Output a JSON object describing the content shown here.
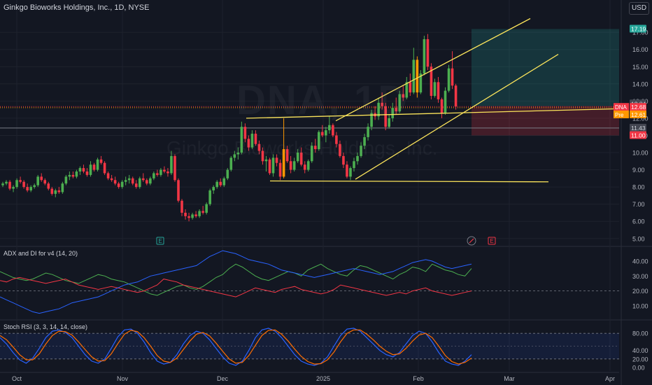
{
  "header": {
    "title": "Ginkgo Bioworks Holdings, Inc., 1D, NYSE",
    "currency": "USD"
  },
  "watermark": {
    "symbol": "DNA, 1D",
    "name": "Ginkgo Bioworks Holdings, Inc."
  },
  "colors": {
    "background": "#131722",
    "up": "#26a69a",
    "up_candle": "#4caf50",
    "down_candle": "#f23645",
    "orange_candle": "#ff9800",
    "trendline": "#fbe45b",
    "adx": "#2962ff",
    "plus_di": "#4caf50",
    "minus_di": "#f23645",
    "stoch_k": "#2962ff",
    "stoch_d": "#ff6d00",
    "grid": "#1e222d",
    "axis_text": "#b2b5be"
  },
  "price_axis": {
    "ticks": [
      "17.00",
      "16.00",
      "15.00",
      "14.00",
      "13.00",
      "12.00",
      "11.00",
      "10.00",
      "9.00",
      "8.00",
      "7.00",
      "6.00",
      "5.00"
    ],
    "labels": [
      {
        "id": "target",
        "text": "17.19",
        "color": "#26a69a"
      },
      {
        "id": "upper",
        "text": "12.84",
        "color": "#434651"
      },
      {
        "id": "dna",
        "text": "12.68",
        "prefix": "DNA",
        "color": "#f23645"
      },
      {
        "id": "pre",
        "text": "12.61",
        "prefix": "Pre",
        "color": "#ff9800"
      },
      {
        "id": "lower",
        "text": "11.43",
        "color": "#434651"
      },
      {
        "id": "stop",
        "text": "11.00",
        "color": "#f23645"
      }
    ]
  },
  "time_axis": [
    "Oct",
    "Nov",
    "Dec",
    "2025",
    "Feb",
    "Mar",
    "Apr"
  ],
  "events": [
    "E",
    "E"
  ],
  "adx_panel": {
    "title": "ADX and DI for v4 (14, 20)",
    "ticks": [
      "40.00",
      "30.00",
      "20.00",
      "10.00"
    ]
  },
  "stoch_panel": {
    "title": "Stoch RSI (3, 3, 14, 14, close)",
    "ticks": [
      "80.00",
      "40.00",
      "20.00",
      "0.00"
    ]
  },
  "chart_data": [
    {
      "type": "candlestick",
      "title": "Ginkgo Bioworks Holdings, Inc., 1D, NYSE",
      "ylim": [
        4.5,
        17.7
      ],
      "x": [
        "Oct",
        "Nov",
        "Dec",
        "2025",
        "Feb",
        "Mar",
        "Apr"
      ],
      "candles": [
        [
          8.1,
          8.3,
          8.0,
          8.2
        ],
        [
          8.2,
          8.4,
          8.1,
          8.3
        ],
        [
          8.3,
          8.4,
          7.8,
          7.9
        ],
        [
          7.9,
          8.1,
          7.7,
          8.0
        ],
        [
          8.0,
          8.5,
          7.9,
          8.4
        ],
        [
          8.4,
          8.6,
          8.2,
          8.3
        ],
        [
          8.3,
          8.4,
          7.9,
          8.0
        ],
        [
          8.0,
          8.2,
          7.7,
          7.8
        ],
        [
          7.8,
          8.1,
          7.7,
          8.0
        ],
        [
          8.0,
          8.2,
          7.9,
          8.1
        ],
        [
          8.1,
          8.7,
          8.0,
          8.6
        ],
        [
          8.6,
          8.8,
          8.3,
          8.4
        ],
        [
          8.4,
          8.5,
          8.1,
          8.2
        ],
        [
          8.2,
          8.3,
          7.8,
          7.9
        ],
        [
          7.9,
          8.0,
          7.5,
          7.6
        ],
        [
          7.6,
          7.9,
          7.4,
          7.8
        ],
        [
          7.8,
          8.0,
          7.6,
          7.7
        ],
        [
          7.7,
          8.3,
          7.6,
          8.2
        ],
        [
          8.2,
          8.7,
          8.1,
          8.6
        ],
        [
          8.6,
          8.9,
          8.4,
          8.7
        ],
        [
          8.7,
          8.9,
          8.5,
          8.6
        ],
        [
          8.6,
          9.0,
          8.5,
          8.9
        ],
        [
          8.9,
          9.2,
          8.7,
          9.1
        ],
        [
          9.1,
          9.3,
          8.8,
          8.9
        ],
        [
          8.9,
          9.1,
          8.6,
          8.7
        ],
        [
          8.7,
          9.5,
          8.6,
          9.3
        ],
        [
          9.3,
          9.4,
          8.9,
          9.0
        ],
        [
          9.0,
          9.7,
          8.9,
          9.6
        ],
        [
          9.6,
          9.8,
          9.3,
          9.4
        ],
        [
          9.4,
          9.5,
          8.7,
          8.8
        ],
        [
          8.8,
          8.9,
          8.4,
          8.5
        ],
        [
          8.5,
          8.7,
          8.3,
          8.4
        ],
        [
          8.4,
          8.6,
          8.1,
          8.2
        ],
        [
          8.2,
          8.3,
          7.9,
          8.0
        ],
        [
          8.0,
          8.4,
          7.9,
          8.3
        ],
        [
          8.3,
          8.6,
          8.1,
          8.4
        ],
        [
          8.4,
          8.7,
          8.2,
          8.5
        ],
        [
          8.5,
          8.6,
          8.1,
          8.2
        ],
        [
          8.2,
          8.4,
          7.9,
          8.0
        ],
        [
          8.0,
          8.6,
          7.9,
          8.5
        ],
        [
          8.5,
          8.8,
          8.3,
          8.4
        ],
        [
          8.4,
          8.5,
          8.1,
          8.2
        ],
        [
          8.2,
          8.6,
          8.1,
          8.5
        ],
        [
          8.5,
          8.9,
          8.4,
          8.8
        ],
        [
          8.8,
          9.0,
          8.6,
          8.7
        ],
        [
          8.7,
          9.1,
          8.6,
          9.0
        ],
        [
          9.0,
          9.2,
          8.8,
          8.9
        ],
        [
          8.9,
          9.1,
          8.6,
          8.8
        ],
        [
          8.8,
          10.1,
          8.7,
          9.8
        ],
        [
          9.8,
          9.9,
          8.3,
          8.4
        ],
        [
          8.4,
          8.5,
          7.1,
          7.2
        ],
        [
          7.2,
          7.3,
          6.3,
          6.5
        ],
        [
          6.5,
          6.7,
          6.1,
          6.3
        ],
        [
          6.3,
          6.5,
          6.0,
          6.2
        ],
        [
          6.2,
          6.5,
          6.1,
          6.4
        ],
        [
          6.4,
          6.6,
          6.2,
          6.3
        ],
        [
          6.3,
          6.7,
          6.2,
          6.6
        ],
        [
          6.6,
          6.9,
          6.4,
          6.5
        ],
        [
          6.5,
          7.1,
          6.4,
          7.0
        ],
        [
          7.0,
          7.9,
          6.9,
          7.8
        ],
        [
          7.8,
          8.1,
          7.6,
          8.0
        ],
        [
          8.0,
          8.4,
          7.9,
          8.3
        ],
        [
          8.3,
          8.5,
          8.0,
          8.1
        ],
        [
          8.1,
          8.6,
          8.0,
          8.5
        ],
        [
          8.5,
          9.1,
          8.4,
          9.0
        ],
        [
          9.0,
          9.8,
          8.9,
          9.7
        ],
        [
          9.7,
          10.1,
          9.5,
          9.9
        ],
        [
          9.9,
          10.3,
          9.6,
          10.0
        ],
        [
          10.0,
          11.8,
          9.9,
          11.5
        ],
        [
          11.5,
          11.7,
          10.6,
          10.8
        ],
        [
          10.8,
          11.0,
          10.1,
          10.3
        ],
        [
          10.3,
          11.3,
          10.2,
          11.1
        ],
        [
          11.1,
          11.3,
          10.4,
          10.5
        ],
        [
          10.5,
          10.7,
          9.9,
          10.1
        ],
        [
          10.1,
          10.3,
          9.3,
          9.5
        ],
        [
          9.5,
          9.8,
          8.9,
          9.6
        ],
        [
          9.6,
          9.7,
          8.7,
          8.8
        ],
        [
          8.8,
          9.9,
          8.6,
          9.7
        ],
        [
          9.7,
          9.9,
          9.2,
          9.4
        ],
        [
          9.4,
          9.6,
          8.4,
          8.6
        ],
        [
          8.6,
          12.0,
          8.5,
          10.2
        ],
        [
          10.2,
          10.4,
          9.4,
          9.5
        ],
        [
          9.5,
          9.8,
          8.8,
          9.0
        ],
        [
          9.0,
          9.7,
          8.9,
          9.5
        ],
        [
          9.5,
          10.2,
          9.4,
          10.0
        ],
        [
          10.0,
          10.3,
          9.2,
          9.3
        ],
        [
          9.3,
          9.5,
          8.8,
          9.0
        ],
        [
          9.0,
          9.6,
          8.9,
          9.5
        ],
        [
          9.5,
          10.6,
          9.4,
          10.4
        ],
        [
          10.4,
          10.8,
          10.0,
          10.2
        ],
        [
          10.2,
          11.3,
          10.1,
          11.2
        ],
        [
          11.2,
          11.6,
          10.9,
          11.0
        ],
        [
          11.0,
          11.5,
          10.6,
          11.3
        ],
        [
          11.3,
          12.1,
          11.1,
          11.6
        ],
        [
          11.6,
          11.7,
          10.9,
          11.0
        ],
        [
          11.0,
          11.2,
          10.3,
          10.5
        ],
        [
          10.5,
          10.7,
          9.7,
          9.8
        ],
        [
          9.8,
          10.0,
          9.1,
          9.3
        ],
        [
          9.3,
          9.5,
          8.5,
          8.6
        ],
        [
          8.6,
          9.2,
          8.4,
          9.1
        ],
        [
          9.1,
          9.7,
          8.9,
          9.5
        ],
        [
          9.5,
          10.0,
          9.3,
          9.8
        ],
        [
          9.8,
          10.6,
          9.7,
          10.4
        ],
        [
          10.4,
          11.1,
          10.2,
          10.9
        ],
        [
          10.9,
          11.7,
          10.7,
          11.5
        ],
        [
          11.5,
          12.5,
          11.3,
          12.3
        ],
        [
          12.3,
          12.7,
          11.9,
          12.1
        ],
        [
          12.1,
          13.2,
          11.9,
          12.9
        ],
        [
          12.9,
          13.5,
          12.5,
          12.7
        ],
        [
          12.7,
          12.9,
          11.3,
          11.5
        ],
        [
          11.5,
          12.2,
          11.4,
          12.0
        ],
        [
          12.0,
          12.9,
          11.8,
          12.6
        ],
        [
          12.6,
          13.2,
          12.2,
          12.4
        ],
        [
          12.4,
          13.6,
          12.3,
          13.4
        ],
        [
          13.4,
          13.9,
          13.0,
          13.2
        ],
        [
          13.2,
          14.4,
          13.1,
          14.1
        ],
        [
          14.1,
          14.6,
          13.3,
          13.5
        ],
        [
          13.5,
          16.1,
          13.4,
          15.4
        ],
        [
          15.4,
          15.6,
          13.2,
          13.5
        ],
        [
          13.5,
          14.8,
          13.4,
          14.6
        ],
        [
          14.6,
          16.8,
          14.5,
          16.6
        ],
        [
          16.6,
          16.9,
          14.8,
          15.0
        ],
        [
          15.0,
          15.2,
          13.1,
          13.3
        ],
        [
          13.3,
          14.3,
          13.2,
          14.1
        ],
        [
          14.1,
          14.4,
          12.9,
          13.1
        ],
        [
          13.1,
          13.2,
          12.0,
          12.3
        ],
        [
          12.3,
          13.8,
          12.2,
          13.6
        ],
        [
          13.6,
          15.1,
          13.5,
          14.9
        ],
        [
          14.9,
          15.9,
          13.7,
          13.9
        ],
        [
          13.9,
          14.0,
          12.5,
          12.68
        ]
      ]
    },
    {
      "type": "line",
      "title": "ADX and DI for v4 (14, 20)",
      "ylim": [
        0,
        50
      ],
      "series": [
        {
          "values": [
            33,
            31,
            29,
            28,
            27,
            28,
            30,
            32,
            31,
            29,
            27,
            26,
            25,
            27,
            29,
            31,
            30,
            28,
            27,
            26,
            24,
            22,
            20,
            18,
            17,
            19,
            21,
            23,
            24,
            22,
            21,
            23,
            26,
            29,
            31,
            35,
            38,
            36,
            33,
            30,
            28,
            27,
            29,
            31,
            33,
            32,
            30,
            34,
            36,
            38,
            35,
            33,
            31,
            30,
            34,
            37,
            36,
            34,
            32,
            30,
            28,
            31,
            33,
            36,
            35,
            33,
            38,
            36,
            34,
            33,
            31,
            30,
            35
          ]
        },
        {
          "values": [
            27,
            26,
            28,
            29,
            28,
            27,
            26,
            25,
            26,
            27,
            28,
            26,
            24,
            23,
            22,
            21,
            22,
            23,
            22,
            21,
            20,
            19,
            20,
            22,
            24,
            28,
            27,
            26,
            24,
            23,
            22,
            21,
            20,
            19,
            18,
            17,
            16,
            18,
            20,
            22,
            21,
            20,
            19,
            21,
            22,
            23,
            21,
            20,
            19,
            18,
            19,
            21,
            24,
            23,
            22,
            21,
            20,
            19,
            18,
            17,
            18,
            19,
            18,
            20,
            21,
            22,
            20,
            19,
            18,
            17,
            18,
            19,
            20
          ]
        },
        {
          "values": [
            16,
            14,
            12,
            10,
            8,
            6,
            5,
            6,
            7,
            8,
            10,
            12,
            13,
            14,
            15,
            16,
            18,
            20,
            22,
            24,
            25,
            26,
            28,
            30,
            31,
            32,
            33,
            34,
            35,
            36,
            37,
            40,
            43,
            45,
            47,
            46,
            45,
            43,
            41,
            40,
            39,
            38,
            36,
            34,
            33,
            32,
            31,
            30,
            29,
            30,
            31,
            32,
            33,
            34,
            35,
            34,
            33,
            32,
            31,
            32,
            33,
            35,
            37,
            39,
            40,
            41,
            40,
            38,
            36,
            35,
            36,
            37,
            38
          ]
        }
      ]
    },
    {
      "type": "line",
      "title": "Stoch RSI (3, 3, 14, 14, close)",
      "ylim": [
        0,
        100
      ],
      "series": [
        {
          "values": [
            70,
            55,
            35,
            18,
            10,
            22,
            45,
            70,
            85,
            88,
            82,
            70,
            50,
            30,
            15,
            10,
            20,
            45,
            72,
            88,
            90,
            80,
            60,
            35,
            15,
            8,
            12,
            30,
            55,
            75,
            85,
            80,
            65,
            45,
            25,
            10,
            5,
            15,
            40,
            70,
            88,
            92,
            85,
            70,
            50,
            30,
            15,
            8,
            5,
            10,
            25,
            50,
            75,
            90,
            92,
            85,
            70,
            55,
            40,
            30,
            25,
            35,
            55,
            75,
            85,
            80,
            60,
            35,
            15,
            8,
            5,
            15,
            30
          ]
        },
        {
          "values": [
            75,
            65,
            48,
            30,
            18,
            18,
            32,
            55,
            75,
            85,
            84,
            76,
            60,
            42,
            25,
            15,
            16,
            32,
            56,
            78,
            87,
            84,
            70,
            50,
            28,
            15,
            12,
            22,
            42,
            62,
            78,
            82,
            74,
            57,
            38,
            20,
            10,
            12,
            28,
            52,
            75,
            87,
            88,
            78,
            62,
            43,
            26,
            14,
            8,
            9,
            18,
            36,
            60,
            80,
            88,
            88,
            78,
            65,
            50,
            38,
            30,
            32,
            45,
            62,
            76,
            80,
            70,
            50,
            28,
            14,
            8,
            12,
            22
          ]
        }
      ]
    }
  ]
}
